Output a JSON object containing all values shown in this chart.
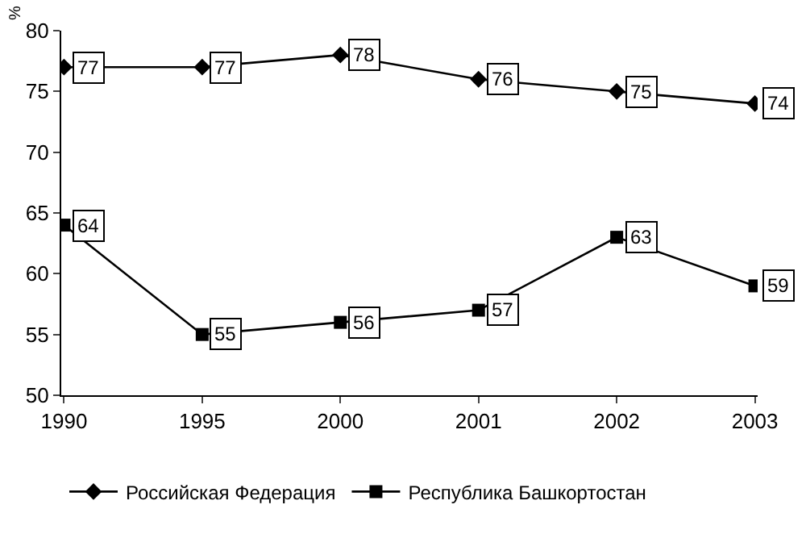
{
  "chart_data": {
    "type": "line",
    "ylabel": "%",
    "categories": [
      "1990",
      "1995",
      "2000",
      "2001",
      "2002",
      "2003"
    ],
    "series": [
      {
        "name": "Российская Федерация",
        "color": "#000000",
        "marker": "diamond",
        "values": [
          77,
          77,
          78,
          76,
          75,
          74
        ]
      },
      {
        "name": "Республика Башкортостан",
        "color": "#000000",
        "marker": "square",
        "values": [
          64,
          55,
          56,
          57,
          63,
          59
        ]
      }
    ],
    "ylim": [
      50,
      80
    ],
    "yticks": [
      50,
      55,
      60,
      65,
      70,
      75,
      80
    ],
    "legend": "bottom",
    "data_labels": true,
    "line_style": "solid"
  }
}
